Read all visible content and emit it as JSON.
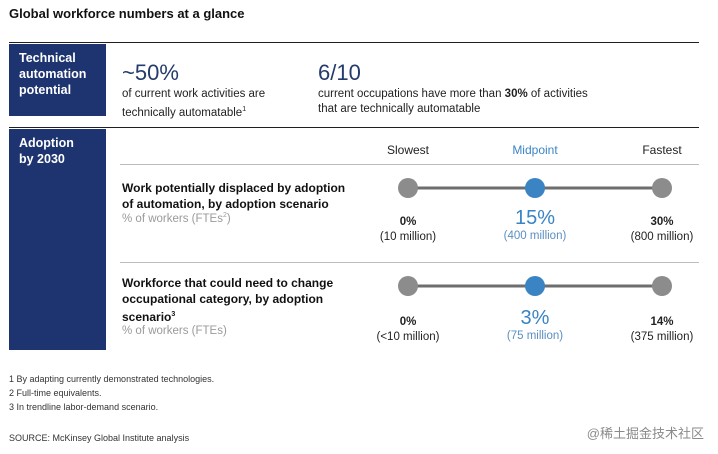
{
  "title": "Global workforce numbers at a glance",
  "section1": {
    "label": "Technical automation potential",
    "stat1": {
      "value": "~50%",
      "desc_line1": "of current work activities are",
      "desc_line2": "technically automatable",
      "sup": "1"
    },
    "stat2": {
      "value": "6/10",
      "desc_pre": "current occupations have more than ",
      "desc_bold": "30%",
      "desc_post": " of activities",
      "desc_line2": "that are technically automatable"
    }
  },
  "section2": {
    "label": "Adoption by 2030",
    "columns": [
      "Slowest",
      "Midpoint",
      "Fastest"
    ]
  },
  "colors": {
    "navy": "#1d3470",
    "accent": "#3a84c4",
    "gray_dot": "#8c8c8c",
    "line": "#6e6e6e"
  },
  "chart_data": {
    "type": "table",
    "columns": [
      "Slowest",
      "Midpoint",
      "Fastest"
    ],
    "rows": [
      {
        "title_line1": "Work potentially displaced by adoption",
        "title_line2": "of automation, by adoption scenario",
        "subtitle": "% of workers (FTEs",
        "subtitle_sup": "2",
        "subtitle_close": ")",
        "values": [
          {
            "pct": "0%",
            "count": "(10 million)"
          },
          {
            "pct": "15%",
            "count": "(400 million)"
          },
          {
            "pct": "30%",
            "count": "(800 million)"
          }
        ]
      },
      {
        "title_line1": "Workforce that could need to change",
        "title_line2": "occupational category, by adoption",
        "title_line3": "scenario",
        "title_sup": "3",
        "subtitle": "% of workers (FTEs)",
        "values": [
          {
            "pct": "0%",
            "count": "(<10 million)"
          },
          {
            "pct": "3%",
            "count": "(75 million)"
          },
          {
            "pct": "14%",
            "count": "(375 million)"
          }
        ]
      }
    ]
  },
  "footnotes": [
    "1  By adapting currently demonstrated technologies.",
    "2  Full-time equivalents.",
    "3  In trendline labor-demand scenario."
  ],
  "source": "SOURCE: McKinsey Global Institute analysis",
  "watermark": "@稀土掘金技术社区"
}
